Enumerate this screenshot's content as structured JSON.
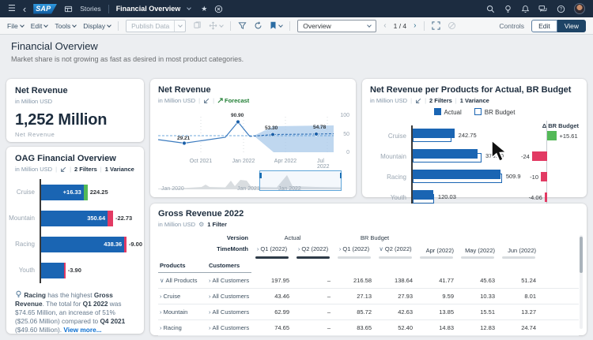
{
  "shell": {
    "brand": "SAP",
    "stories_label": "Stories",
    "document_title": "Financial Overview"
  },
  "toolbar": {
    "menus": [
      {
        "label": "File"
      },
      {
        "label": "Edit"
      },
      {
        "label": "Tools"
      },
      {
        "label": "Display"
      }
    ],
    "publish_label": "Publish Data",
    "page_selector_value": "Overview",
    "page_indicator": "1 / 4",
    "controls_label": "Controls",
    "edit_label": "Edit",
    "view_label": "View"
  },
  "icons": {
    "hamburger": "☰",
    "back": "‹",
    "star": "★",
    "gear": "⚙",
    "page_prev": "‹",
    "page_next": "›"
  },
  "page": {
    "title": "Financial Overview",
    "subtitle": "Market share is not growing as fast as desired in most product categories."
  },
  "kpi_card": {
    "title": "Net Revenue",
    "unit": "in Million USD",
    "value": "1,252 Million",
    "caption": "Net Revenue"
  },
  "line_card": {
    "title": "Net Revenue",
    "unit": "in Million USD",
    "forecast_label": "Forecast",
    "y_ticks": [
      "100",
      "50",
      "0"
    ],
    "x_ticks": [
      "Oct 2021",
      "Jan 2022",
      "Apr 2022",
      "Jul 2022"
    ],
    "range_ticks": [
      "Jan 2020",
      "Jan 2021",
      "Jan 2022"
    ],
    "point_labels": {
      "p1": "29.21",
      "p2": "90.90",
      "p3": "53.30",
      "p4": "54.78"
    },
    "chart_data": {
      "type": "line",
      "ylim": [
        0,
        100
      ],
      "series": [
        {
          "name": "Actual",
          "x": [
            "Aug 2021",
            "Nov 2021",
            "Jan 2022",
            "Feb 2022",
            "Mar 2022"
          ],
          "values": [
            40,
            29.21,
            46,
            90.9,
            48
          ]
        },
        {
          "name": "Forecast",
          "x": [
            "Mar 2022",
            "May 2022",
            "Jul 2022"
          ],
          "values": [
            48,
            53.3,
            54.78
          ]
        }
      ]
    }
  },
  "products_card": {
    "title": "Net Revenue per Products for Actual, BR Budget",
    "unit": "in Million USD",
    "filters_label": "2 Filters",
    "variance_label": "1 Variance",
    "legend": [
      {
        "label": "Actual"
      },
      {
        "label": "BR Budget"
      }
    ],
    "delta_header": "Δ BR Budget",
    "chart_data": {
      "type": "bar",
      "categories": [
        "Cruise",
        "Mountain",
        "Racing",
        "Youth"
      ],
      "series": [
        {
          "name": "Actual",
          "values": [
            242.75,
            376.9,
            509.9,
            120.03
          ]
        },
        {
          "name": "BR Budget (Δ)",
          "values": [
            15.61,
            -24,
            -10,
            -4.06
          ]
        }
      ]
    },
    "rows": [
      {
        "label": "Cruise",
        "value": "242.75",
        "value_num": 242.75,
        "budget_num": 227.1,
        "delta": "+15.61",
        "delta_num": 15.61
      },
      {
        "label": "Mountain",
        "value": "376.90",
        "value_num": 376.9,
        "budget_num": 400.9,
        "delta": "-24",
        "delta_num": -24
      },
      {
        "label": "Racing",
        "value": "509.9",
        "value_num": 509.9,
        "budget_num": 519.9,
        "delta": "-10",
        "delta_num": -10
      },
      {
        "label": "Youth",
        "value": "120.03",
        "value_num": 120.03,
        "budget_num": 124.1,
        "delta": "-4.06",
        "delta_num": -4.06
      }
    ]
  },
  "oag_card": {
    "title": "OAG Financial Overview",
    "unit": "in Million USD",
    "filters_label": "2 Filters",
    "variance_label": "1 Variance",
    "chart_data": {
      "type": "bar",
      "categories": [
        "Cruise",
        "Mountain",
        "Racing",
        "Youth"
      ],
      "values": [
        224.25,
        350.64,
        438.36,
        120
      ],
      "variances": [
        16.33,
        -22.73,
        -9.0,
        -3.9
      ]
    },
    "rows": [
      {
        "label": "Cruise",
        "bar_label": "+16.33",
        "value_num": 224.25,
        "outer_label": "224.25",
        "delta_num": 16.33
      },
      {
        "label": "Mountain",
        "bar_label": "350.64",
        "value_num": 350.64,
        "outer_label": "-22.73",
        "delta_num": -22.73
      },
      {
        "label": "Racing",
        "bar_label": "438.36",
        "value_num": 438.36,
        "outer_label": "-9.00",
        "delta_num": -9.0
      },
      {
        "label": "Youth",
        "bar_label": "",
        "value_num": 120,
        "outer_label": "-3.90",
        "delta_num": -3.9
      }
    ],
    "insight": {
      "s0": "Racing",
      "s1": " has the highest ",
      "s2": "Gross Revenue",
      "s3": ". The total for ",
      "s4": "Q1 2022",
      "s5": " was $74.65 Million, an increase of 51% ($25.06 Million) compared to ",
      "s6": "Q4 2021",
      "s7": " ($49.60 Million). ",
      "s8": "View more..."
    }
  },
  "table_card": {
    "title": "Gross Revenue 2022",
    "unit": "in Million USD",
    "filter_label": "1 Filter",
    "version_label": "Version",
    "time_label": "TimeMonth",
    "group_headers": [
      "Actual",
      "BR Budget"
    ],
    "columns": [
      {
        "chevron": "›",
        "label": "Q1 (2022)"
      },
      {
        "chevron": "›",
        "label": "Q2 (2022)"
      },
      {
        "chevron": "›",
        "label": "Q1 (2022)"
      },
      {
        "chevron": "∨",
        "label": "Q2 (2022)"
      },
      {
        "chevron": "",
        "label": "Apr (2022)"
      },
      {
        "chevron": "",
        "label": "May (2022)"
      },
      {
        "chevron": "",
        "label": "Jun (2022)"
      }
    ],
    "row_dim_1": "Products",
    "row_dim_2": "Customers",
    "rows": [
      {
        "chevron": "∨",
        "product": "All Products",
        "cust_chevron": "›",
        "customer": "All Customers",
        "values": [
          "197.95",
          "–",
          "216.58",
          "138.64",
          "41.77",
          "45.63",
          "51.24"
        ]
      },
      {
        "chevron": "›",
        "product": "Cruise",
        "cust_chevron": "›",
        "customer": "All Customers",
        "values": [
          "43.46",
          "–",
          "27.13",
          "27.93",
          "9.59",
          "10.33",
          "8.01"
        ]
      },
      {
        "chevron": "›",
        "product": "Mountain",
        "cust_chevron": "›",
        "customer": "All Customers",
        "values": [
          "62.99",
          "–",
          "85.72",
          "42.63",
          "13.85",
          "15.51",
          "13.27"
        ]
      },
      {
        "chevron": "›",
        "product": "Racing",
        "cust_chevron": "›",
        "customer": "All Customers",
        "values": [
          "74.65",
          "–",
          "83.65",
          "52.40",
          "14.83",
          "12.83",
          "24.74"
        ]
      }
    ]
  },
  "colors": {
    "accent_blue": "#0a6ed1",
    "bar_blue": "#1a65b3",
    "positive_green": "#53b957",
    "negative_red": "#e23a63",
    "shell_bg": "#1c2c40"
  }
}
